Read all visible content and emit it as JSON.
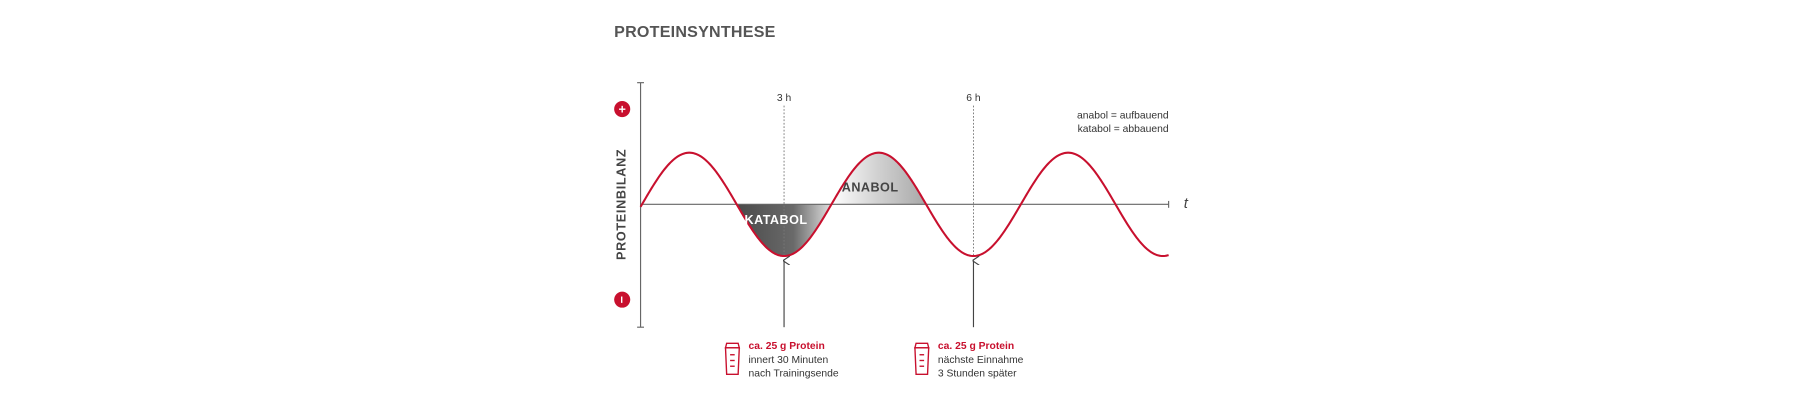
{
  "title": "PROTEINSYNTHESE",
  "y_axis": {
    "label": "PROTEINBILANZ",
    "plus": "+",
    "minus": "−"
  },
  "x_axis": {
    "label": "t"
  },
  "regions": {
    "katabol": "KATABOL",
    "anabol": "ANABOL"
  },
  "legend": [
    "anabol = aufbauend",
    "katabol = abbauend"
  ],
  "markers": [
    {
      "label": "3 h",
      "note": {
        "title": "ca. 25 g Protein",
        "lines": [
          "innert 30 Minuten",
          "nach Trainingsende"
        ]
      }
    },
    {
      "label": "6 h",
      "note": {
        "title": "ca. 25 g Protein",
        "lines": [
          "nächste Einnahme",
          "3 Stunden später"
        ]
      }
    }
  ]
}
